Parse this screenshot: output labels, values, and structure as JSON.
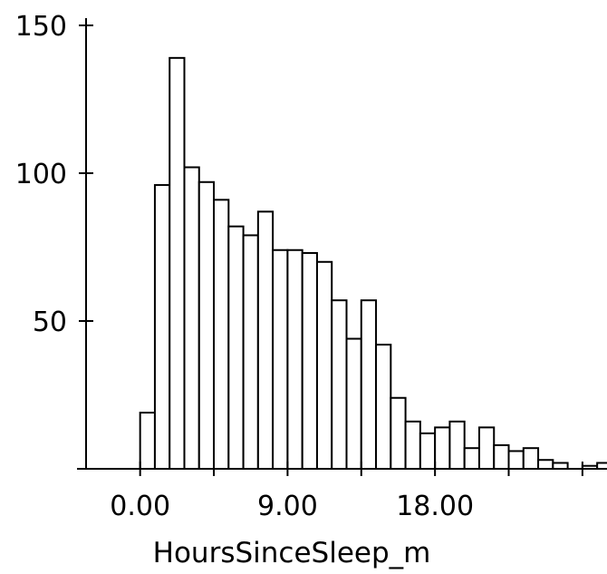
{
  "chart_data": {
    "type": "bar",
    "title": "",
    "xlabel": "HoursSinceSleep_m",
    "ylabel": "",
    "bin_width": 0.9,
    "x_start": 0,
    "xlim": [
      -3.3,
      28.5
    ],
    "ylim": [
      0,
      150
    ],
    "x_ticks": [
      0,
      4.5,
      9,
      13.5,
      18,
      22.5,
      27
    ],
    "x_tick_labels": [
      "0.00",
      "",
      "9.00",
      "",
      "18.00",
      "",
      ""
    ],
    "y_ticks": [
      50,
      100,
      150
    ],
    "y_tick_labels": [
      "50",
      "100",
      "150"
    ],
    "values": [
      19,
      96,
      139,
      102,
      97,
      91,
      82,
      79,
      87,
      74,
      74,
      73,
      70,
      57,
      44,
      57,
      42,
      24,
      16,
      12,
      14,
      16,
      7,
      14,
      8,
      6,
      7,
      3,
      2,
      0,
      1,
      2
    ],
    "grid": false,
    "legend": "none"
  }
}
